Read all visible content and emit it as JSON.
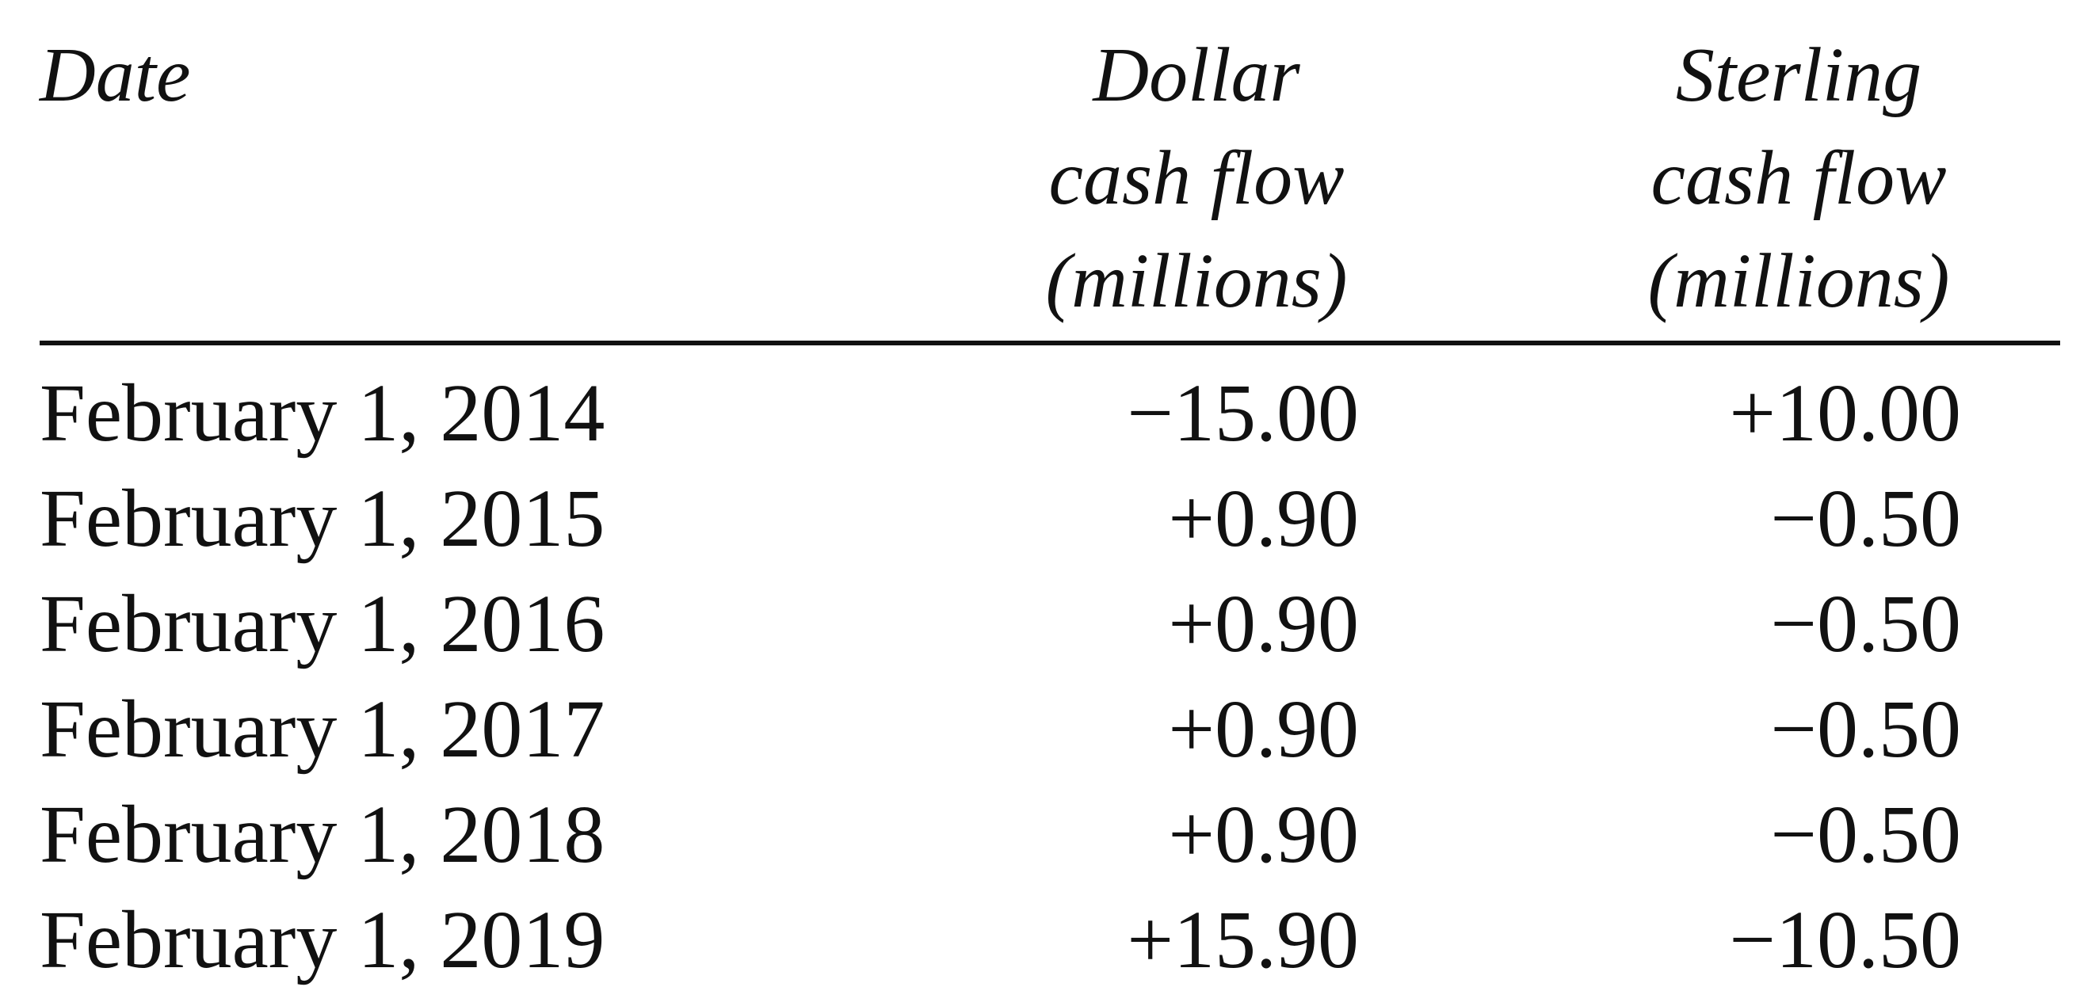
{
  "table": {
    "headers": {
      "date": "Date",
      "dollar": "Dollar\ncash flow\n(millions)",
      "sterling": "Sterling\ncash flow\n(millions)"
    },
    "rows": [
      {
        "date": "February 1, 2014",
        "dollar": "−15.00",
        "sterling": "+10.00"
      },
      {
        "date": "February 1, 2015",
        "dollar": "+0.90",
        "sterling": "−0.50"
      },
      {
        "date": "February 1, 2016",
        "dollar": "+0.90",
        "sterling": "−0.50"
      },
      {
        "date": "February 1, 2017",
        "dollar": "+0.90",
        "sterling": "−0.50"
      },
      {
        "date": "February 1, 2018",
        "dollar": "+0.90",
        "sterling": "−0.50"
      },
      {
        "date": "February 1, 2019",
        "dollar": "+15.90",
        "sterling": "−10.50"
      }
    ]
  }
}
